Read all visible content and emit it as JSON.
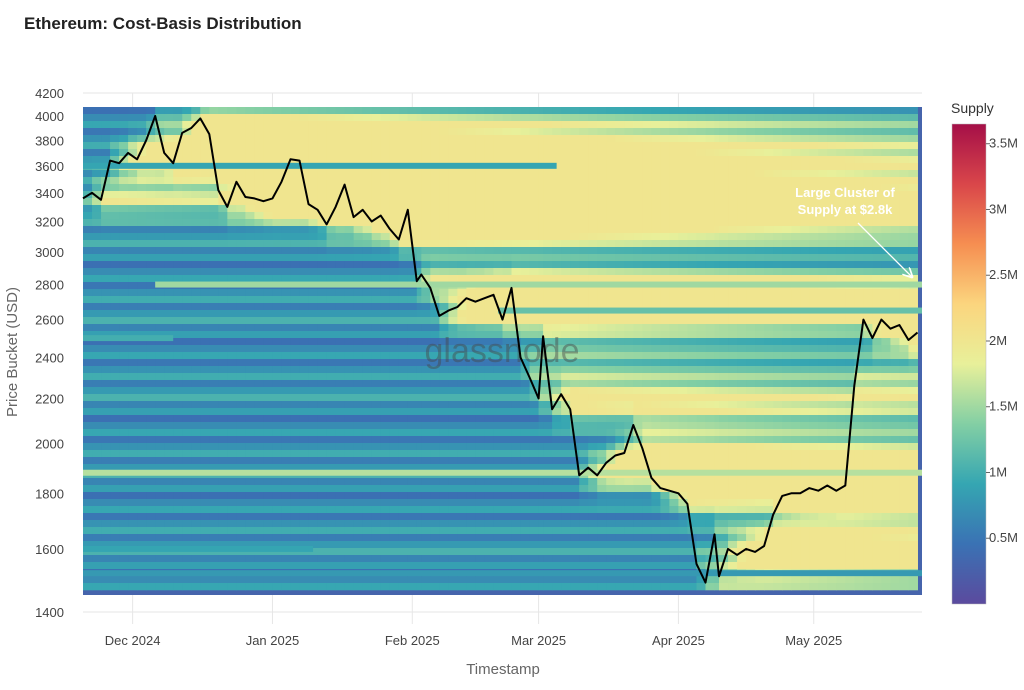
{
  "title": "Ethereum: Cost-Basis Distribution",
  "watermark": "glassnode",
  "annotation": "Large Cluster of Supply at $2.8k",
  "chart_data": {
    "type": "heatmap",
    "xlabel": "Timestamp",
    "ylabel": "Price Bucket (USD)",
    "y_scale": "log",
    "ylim": [
      1400,
      4200
    ],
    "y_ticks": [
      1400,
      1600,
      1800,
      2000,
      2200,
      2400,
      2600,
      2800,
      3000,
      3200,
      3400,
      3600,
      3800,
      4000,
      4200
    ],
    "x_start": "2024-11-20",
    "x_end": "2025-05-25",
    "x_ticks": [
      {
        "date": "2024-12-01",
        "label": "Dec 2024"
      },
      {
        "date": "2025-01-01",
        "label": "Jan 2025"
      },
      {
        "date": "2025-02-01",
        "label": "Feb 2025"
      },
      {
        "date": "2025-03-01",
        "label": "Mar 2025"
      },
      {
        "date": "2025-04-01",
        "label": "Apr 2025"
      },
      {
        "date": "2025-05-01",
        "label": "May 2025"
      }
    ],
    "colorbar": {
      "title": "Supply",
      "min": 0,
      "max": 3650000,
      "ticks": [
        {
          "value": 500000,
          "label": "0.5M"
        },
        {
          "value": 1000000,
          "label": "1M"
        },
        {
          "value": 1500000,
          "label": "1.5M"
        },
        {
          "value": 2000000,
          "label": "2M"
        },
        {
          "value": 2500000,
          "label": "2.5M"
        },
        {
          "value": 3000000,
          "label": "3M"
        },
        {
          "value": 3500000,
          "label": "3.5M"
        }
      ],
      "colors": [
        "#5b4a9e",
        "#3a72b4",
        "#35a6b2",
        "#83cfa4",
        "#e8f09a",
        "#fbd57e",
        "#f68e51",
        "#d9464a",
        "#a50f48"
      ]
    },
    "price_series": {
      "name": "Price",
      "x": [
        "2024-11-20",
        "2024-11-22",
        "2024-11-24",
        "2024-11-26",
        "2024-11-28",
        "2024-11-30",
        "2024-12-02",
        "2024-12-04",
        "2024-12-06",
        "2024-12-08",
        "2024-12-10",
        "2024-12-12",
        "2024-12-14",
        "2024-12-16",
        "2024-12-18",
        "2024-12-20",
        "2024-12-22",
        "2024-12-24",
        "2024-12-26",
        "2024-12-28",
        "2024-12-30",
        "2025-01-01",
        "2025-01-03",
        "2025-01-05",
        "2025-01-07",
        "2025-01-09",
        "2025-01-11",
        "2025-01-13",
        "2025-01-15",
        "2025-01-17",
        "2025-01-19",
        "2025-01-21",
        "2025-01-23",
        "2025-01-25",
        "2025-01-27",
        "2025-01-29",
        "2025-01-31",
        "2025-02-02",
        "2025-02-03",
        "2025-02-05",
        "2025-02-07",
        "2025-02-09",
        "2025-02-11",
        "2025-02-13",
        "2025-02-15",
        "2025-02-17",
        "2025-02-19",
        "2025-02-21",
        "2025-02-23",
        "2025-02-25",
        "2025-02-27",
        "2025-03-01",
        "2025-03-02",
        "2025-03-04",
        "2025-03-06",
        "2025-03-08",
        "2025-03-10",
        "2025-03-12",
        "2025-03-14",
        "2025-03-16",
        "2025-03-18",
        "2025-03-20",
        "2025-03-22",
        "2025-03-24",
        "2025-03-26",
        "2025-03-28",
        "2025-03-30",
        "2025-04-01",
        "2025-04-03",
        "2025-04-05",
        "2025-04-07",
        "2025-04-09",
        "2025-04-10",
        "2025-04-12",
        "2025-04-14",
        "2025-04-16",
        "2025-04-18",
        "2025-04-20",
        "2025-04-22",
        "2025-04-24",
        "2025-04-26",
        "2025-04-28",
        "2025-04-30",
        "2025-05-02",
        "2025-05-04",
        "2025-05-06",
        "2025-05-08",
        "2025-05-10",
        "2025-05-12",
        "2025-05-14",
        "2025-05-16",
        "2025-05-18",
        "2025-05-20",
        "2025-05-22",
        "2025-05-24"
      ],
      "values": [
        3360,
        3400,
        3350,
        3640,
        3620,
        3700,
        3650,
        3800,
        4000,
        3700,
        3620,
        3860,
        3900,
        3980,
        3850,
        3420,
        3300,
        3480,
        3370,
        3360,
        3340,
        3360,
        3480,
        3650,
        3640,
        3320,
        3280,
        3180,
        3300,
        3460,
        3230,
        3280,
        3200,
        3240,
        3150,
        3080,
        3280,
        2820,
        2860,
        2780,
        2620,
        2650,
        2670,
        2720,
        2700,
        2720,
        2740,
        2600,
        2780,
        2400,
        2300,
        2200,
        2510,
        2150,
        2220,
        2150,
        1870,
        1900,
        1870,
        1920,
        1950,
        1960,
        2080,
        1980,
        1860,
        1820,
        1810,
        1800,
        1760,
        1550,
        1490,
        1650,
        1510,
        1600,
        1580,
        1600,
        1590,
        1610,
        1720,
        1790,
        1800,
        1800,
        1820,
        1810,
        1830,
        1810,
        1830,
        2260,
        2600,
        2500,
        2600,
        2550,
        2570,
        2490,
        2530
      ]
    },
    "clusters": [
      {
        "price": 1880,
        "supply": 1600000,
        "from": "2024-11-20",
        "to": "2025-05-25"
      },
      {
        "price": 2800,
        "supply": 1500000,
        "from": "2024-12-06",
        "to": "2025-05-25"
      },
      {
        "price": 2650,
        "supply": 1200000,
        "from": "2025-02-20",
        "to": "2025-05-25"
      },
      {
        "price": 1600,
        "supply": 900000,
        "from": "2024-11-20",
        "to": "2025-01-10"
      },
      {
        "price": 2500,
        "supply": 1000000,
        "from": "2024-11-20",
        "to": "2024-12-10"
      },
      {
        "price": 3600,
        "supply": 900000,
        "from": "2024-11-20",
        "to": "2025-03-05"
      },
      {
        "price": 1520,
        "supply": 800000,
        "from": "2024-11-20",
        "to": "2025-05-25"
      }
    ]
  }
}
